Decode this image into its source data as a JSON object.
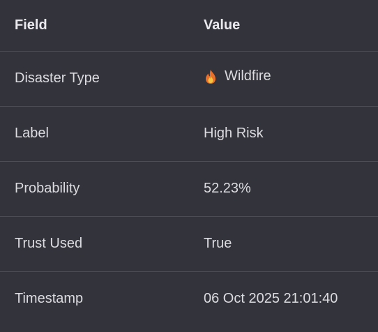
{
  "header": {
    "field_label": "Field",
    "value_label": "Value"
  },
  "rows": [
    {
      "field": "Disaster Type",
      "value": "Wildfire",
      "icon": "fire-icon"
    },
    {
      "field": "Label",
      "value": "High Risk"
    },
    {
      "field": "Probability",
      "value": "52.23%"
    },
    {
      "field": "Trust Used",
      "value": "True"
    },
    {
      "field": "Timestamp",
      "value": "06 Oct 2025 21:01:40"
    }
  ],
  "colors": {
    "background": "#32333b",
    "divider": "#4c4d55",
    "text": "#dcdce0",
    "flame_outer": "#e8702a",
    "flame_inner": "#f6c343"
  }
}
